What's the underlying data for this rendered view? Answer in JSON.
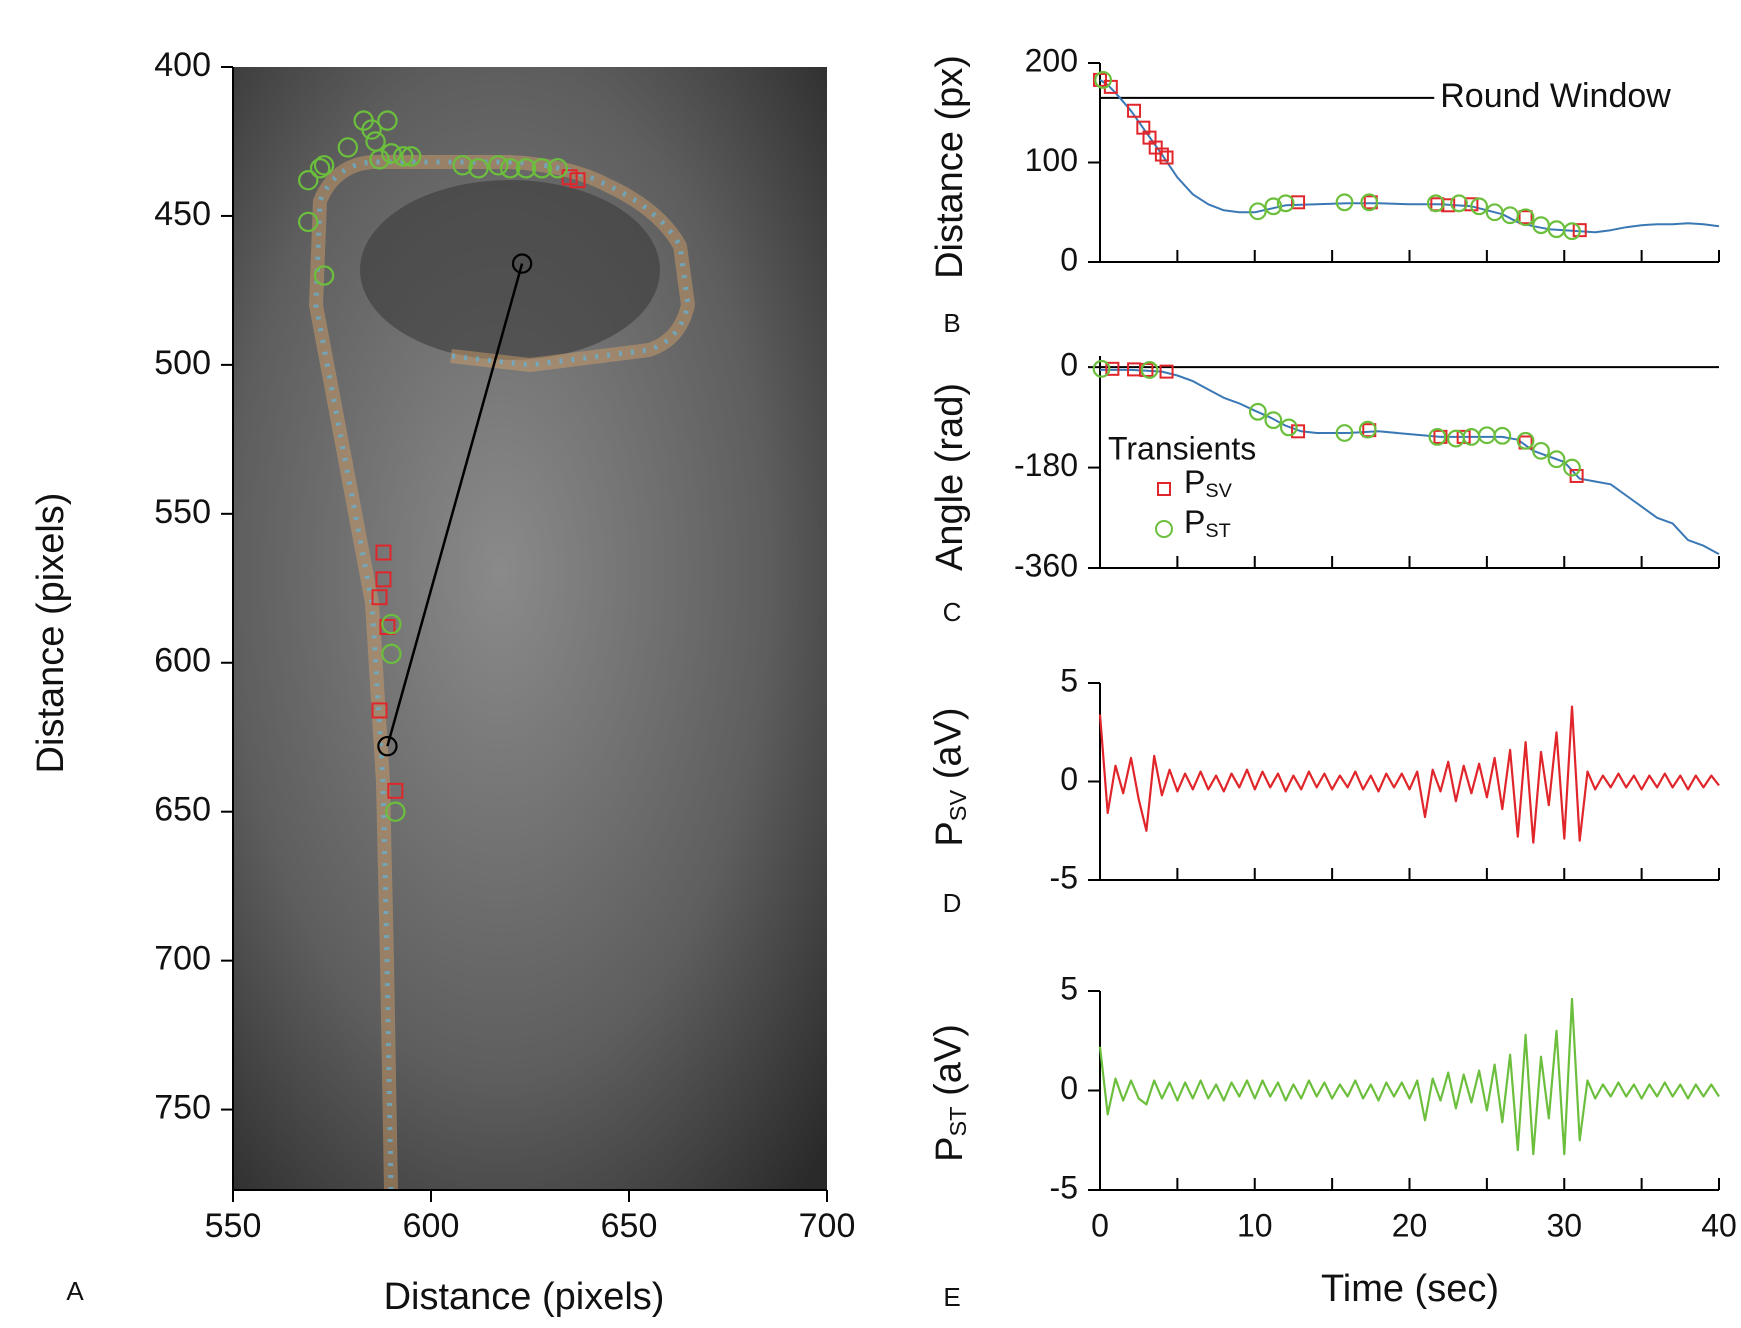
{
  "chart_data": [
    {
      "type": "scatter",
      "panel_label": "A",
      "xlabel": "Distance (pixels)",
      "ylabel": "Distance (pixels)",
      "xlim": [
        550,
        700
      ],
      "ylim": [
        777,
        400
      ],
      "xticks": [
        550,
        600,
        650,
        700
      ],
      "yticks": [
        400,
        450,
        500,
        550,
        600,
        650,
        700,
        750
      ],
      "series": [
        {
          "color": "#e0262b",
          "marker": "square",
          "x": [
            637,
            635,
            588,
            588,
            587,
            589,
            587,
            591
          ],
          "values": [
            438,
            437,
            563,
            572,
            578,
            588,
            616,
            643
          ]
        },
        {
          "color": "#6cbf3d",
          "marker": "circle",
          "x": [
            569,
            572,
            573,
            569,
            573,
            583,
            585,
            586,
            589,
            579,
            587,
            590,
            593,
            595,
            608,
            612,
            617,
            620,
            624,
            628,
            632,
            590,
            590,
            591
          ],
          "values": [
            438,
            434,
            433,
            452,
            470,
            418,
            421,
            425,
            418,
            427,
            431,
            429,
            430,
            430,
            433,
            434,
            433,
            434,
            434,
            434,
            434,
            587,
            597,
            650
          ]
        },
        {
          "color": "#000000",
          "marker": "circle",
          "line": true,
          "x": [
            589,
            623
          ],
          "values": [
            628,
            466
          ]
        }
      ]
    },
    {
      "type": "line",
      "panel_label": "B",
      "ylabel": "Distance (px)",
      "xlim": [
        0,
        40
      ],
      "ylim": [
        0,
        200
      ],
      "yticks": [
        0,
        100,
        200
      ],
      "xticks": [
        0,
        5,
        10,
        15,
        20,
        25,
        30,
        35,
        40
      ],
      "xtick_labels": false,
      "hline": {
        "value": 165,
        "x_end": 21.6,
        "label": "Round Window"
      },
      "series": [
        {
          "color": "#3a78b5",
          "x": [
            0,
            0.5,
            1,
            2,
            3,
            4,
            5,
            6,
            7,
            8,
            9,
            10,
            12,
            14,
            16,
            18,
            20,
            22,
            24,
            26,
            27,
            28,
            29,
            30,
            31,
            32,
            33,
            34,
            35,
            36,
            37,
            38,
            39,
            40
          ],
          "values": [
            183,
            178,
            170,
            152,
            130,
            108,
            85,
            68,
            58,
            52,
            50,
            50,
            57,
            58,
            59,
            59,
            58,
            58,
            56,
            48,
            40,
            36,
            33,
            32,
            31,
            30,
            32,
            35,
            37,
            38,
            38,
            39,
            38,
            36
          ]
        },
        {
          "color": "#e0262b",
          "marker": "square",
          "x": [
            0,
            0.7,
            2.2,
            2.8,
            3.2,
            3.6,
            4,
            4.3,
            12.8,
            17.5,
            21.8,
            22.5,
            24,
            27.5,
            31
          ],
          "values": [
            183,
            176,
            152,
            135,
            125,
            115,
            108,
            105,
            60,
            60,
            58,
            57,
            58,
            45,
            32
          ]
        },
        {
          "color": "#6cbf3d",
          "marker": "circle",
          "x": [
            0.2,
            10.2,
            11.2,
            12,
            15.8,
            17.4,
            21.7,
            23.2,
            24.5,
            25.5,
            26.5,
            27.5,
            28.5,
            29.5,
            30.5
          ],
          "values": [
            183,
            51,
            56,
            59,
            60,
            60,
            59,
            59,
            56,
            50,
            47,
            45,
            37,
            33,
            31
          ]
        }
      ]
    },
    {
      "type": "line",
      "panel_label": "C",
      "ylabel": "Angle (rad)",
      "xlim": [
        0,
        40
      ],
      "ylim": [
        -360,
        20
      ],
      "yticks": [
        -360,
        -180,
        0
      ],
      "xticks": [
        0,
        5,
        10,
        15,
        20,
        25,
        30,
        35,
        40
      ],
      "xtick_labels": false,
      "hline": {
        "value": 0
      },
      "legend": true,
      "legend_title": "Transients",
      "series": [
        {
          "color": "#3a78b5",
          "x": [
            0,
            2,
            4,
            5,
            6,
            7,
            8,
            9,
            10,
            11,
            12,
            13,
            14,
            16,
            18,
            20,
            22,
            24,
            26,
            27,
            28,
            29,
            30,
            31,
            32,
            33,
            34,
            35,
            36,
            37,
            38,
            39,
            40
          ],
          "values": [
            -5,
            -5,
            -8,
            -15,
            -25,
            -40,
            -55,
            -65,
            -78,
            -90,
            -105,
            -115,
            -118,
            -118,
            -115,
            -120,
            -125,
            -125,
            -125,
            -130,
            -150,
            -160,
            -170,
            -200,
            -205,
            -210,
            -230,
            -250,
            -270,
            -280,
            -310,
            -320,
            -335
          ]
        },
        {
          "name": "PSV",
          "color": "#e0262b",
          "marker": "square",
          "x": [
            0.8,
            2.2,
            3,
            4.3,
            12.8,
            17.4,
            22,
            23.5,
            27.5,
            30.8
          ],
          "values": [
            -3,
            -4,
            -5,
            -8,
            -115,
            -113,
            -125,
            -125,
            -135,
            -195
          ]
        },
        {
          "name": "PST",
          "color": "#6cbf3d",
          "marker": "circle",
          "x": [
            0.1,
            3.2,
            10.2,
            11.2,
            12.2,
            15.8,
            17.3,
            21.8,
            23,
            24,
            25,
            26,
            27.5,
            28.5,
            29.5,
            30.5
          ],
          "values": [
            -3,
            -5,
            -80,
            -95,
            -108,
            -118,
            -112,
            -125,
            -128,
            -125,
            -122,
            -123,
            -132,
            -150,
            -165,
            -180
          ]
        }
      ]
    },
    {
      "type": "line",
      "panel_label": "D",
      "ylabel": "PSV (aV)",
      "xlim": [
        0,
        40
      ],
      "ylim": [
        -5,
        5
      ],
      "yticks": [
        -5,
        0,
        5
      ],
      "xticks": [
        0,
        5,
        10,
        15,
        20,
        25,
        30,
        35,
        40
      ],
      "xtick_labels": false,
      "series": [
        {
          "color": "#e0262b",
          "x": [
            0,
            0.5,
            1,
            1.5,
            2,
            2.5,
            3,
            3.5,
            4,
            4.5,
            5,
            5.5,
            6,
            6.5,
            7,
            7.5,
            8,
            8.5,
            9,
            9.5,
            10,
            10.5,
            11,
            11.5,
            12,
            12.5,
            13,
            13.5,
            14,
            14.5,
            15,
            15.5,
            16,
            16.5,
            17,
            17.5,
            18,
            18.5,
            19,
            19.5,
            20,
            20.5,
            21,
            21.5,
            22,
            22.5,
            23,
            23.5,
            24,
            24.5,
            25,
            25.5,
            26,
            26.5,
            27,
            27.5,
            28,
            28.5,
            29,
            29.5,
            30,
            30.5,
            31,
            31.5,
            32,
            32.5,
            33,
            33.5,
            34,
            34.5,
            35,
            35.5,
            36,
            36.5,
            37,
            37.5,
            38,
            38.5,
            39,
            39.5,
            40
          ],
          "values": [
            3.4,
            -1.6,
            0.8,
            -0.6,
            1.2,
            -0.9,
            -2.5,
            1.3,
            -0.7,
            0.6,
            -0.5,
            0.4,
            -0.4,
            0.5,
            -0.4,
            0.3,
            -0.5,
            0.4,
            -0.3,
            0.6,
            -0.4,
            0.5,
            -0.3,
            0.4,
            -0.5,
            0.3,
            -0.4,
            0.5,
            -0.3,
            0.4,
            -0.4,
            0.3,
            -0.3,
            0.5,
            -0.4,
            0.3,
            -0.5,
            0.4,
            -0.3,
            0.4,
            -0.4,
            0.5,
            -1.8,
            0.6,
            -0.5,
            1.0,
            -1.0,
            0.8,
            -0.6,
            0.9,
            -0.8,
            1.2,
            -1.4,
            1.6,
            -2.8,
            2.0,
            -3.1,
            1.5,
            -1.2,
            2.5,
            -2.9,
            3.8,
            -3.0,
            0.5,
            -0.4,
            0.3,
            -0.3,
            0.4,
            -0.3,
            0.3,
            -0.4,
            0.3,
            -0.3,
            0.4,
            -0.3,
            0.3,
            -0.4,
            0.3,
            -0.3,
            0.3,
            -0.2
          ]
        }
      ]
    },
    {
      "type": "line",
      "panel_label": "E",
      "ylabel": "PST (aV)",
      "xlabel": "Time (sec)",
      "xlim": [
        0,
        40
      ],
      "ylim": [
        -5,
        5
      ],
      "yticks": [
        -5,
        0,
        5
      ],
      "xticks": [
        0,
        10,
        20,
        30,
        40
      ],
      "xminor_ticks": [
        5,
        15,
        25,
        35
      ],
      "series": [
        {
          "color": "#6cbf3d",
          "x": [
            0,
            0.5,
            1,
            1.5,
            2,
            2.5,
            3,
            3.5,
            4,
            4.5,
            5,
            5.5,
            6,
            6.5,
            7,
            7.5,
            8,
            8.5,
            9,
            9.5,
            10,
            10.5,
            11,
            11.5,
            12,
            12.5,
            13,
            13.5,
            14,
            14.5,
            15,
            15.5,
            16,
            16.5,
            17,
            17.5,
            18,
            18.5,
            19,
            19.5,
            20,
            20.5,
            21,
            21.5,
            22,
            22.5,
            23,
            23.5,
            24,
            24.5,
            25,
            25.5,
            26,
            26.5,
            27,
            27.5,
            28,
            28.5,
            29,
            29.5,
            30,
            30.5,
            31,
            31.5,
            32,
            32.5,
            33,
            33.5,
            34,
            34.5,
            35,
            35.5,
            36,
            36.5,
            37,
            37.5,
            38,
            38.5,
            39,
            39.5,
            40
          ],
          "values": [
            2.2,
            -1.2,
            0.6,
            -0.5,
            0.5,
            -0.4,
            -0.7,
            0.5,
            -0.4,
            0.4,
            -0.5,
            0.4,
            -0.4,
            0.5,
            -0.4,
            0.3,
            -0.5,
            0.4,
            -0.3,
            0.5,
            -0.4,
            0.5,
            -0.3,
            0.4,
            -0.5,
            0.3,
            -0.4,
            0.5,
            -0.3,
            0.4,
            -0.4,
            0.3,
            -0.3,
            0.5,
            -0.4,
            0.3,
            -0.5,
            0.4,
            -0.3,
            0.4,
            -0.4,
            0.5,
            -1.5,
            0.6,
            -0.5,
            0.9,
            -0.9,
            0.8,
            -0.6,
            1.0,
            -1.0,
            1.3,
            -1.6,
            1.8,
            -3.0,
            2.8,
            -3.2,
            1.7,
            -1.4,
            3.0,
            -3.2,
            4.6,
            -2.5,
            0.5,
            -0.4,
            0.3,
            -0.3,
            0.4,
            -0.3,
            0.3,
            -0.4,
            0.3,
            -0.3,
            0.4,
            -0.3,
            0.3,
            -0.4,
            0.3,
            -0.3,
            0.3,
            -0.3
          ]
        }
      ]
    }
  ]
}
